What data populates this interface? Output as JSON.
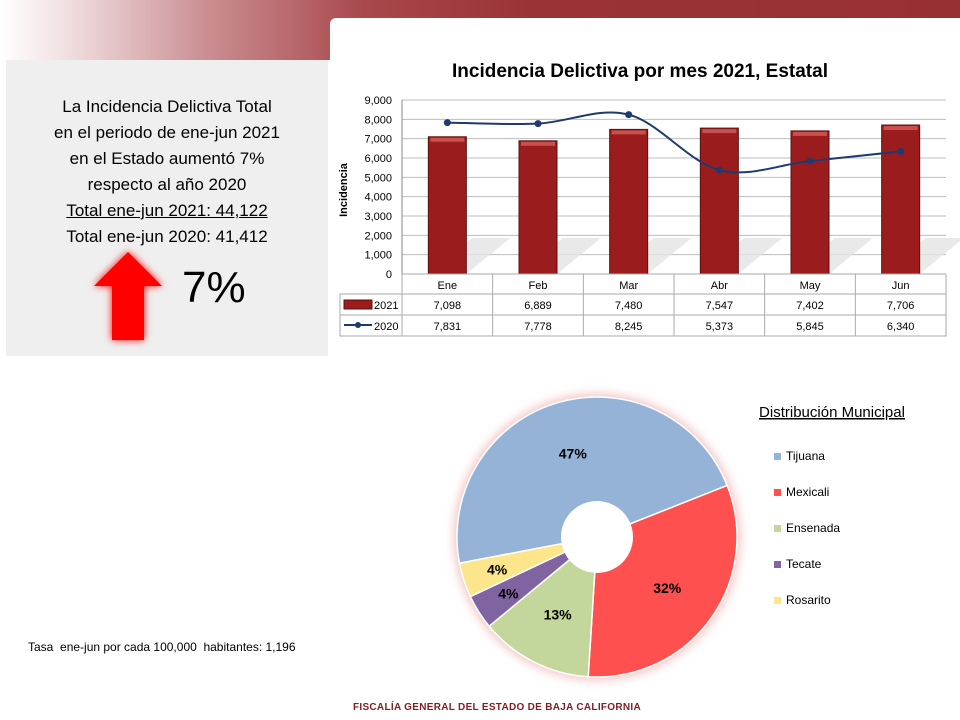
{
  "summary": {
    "lines": [
      "La Incidencia Delictiva Total",
      "en el periodo de ene-jun  2021",
      "en el Estado aumentó 7%",
      "respecto al año 2020",
      "Total ene-jun 2021:  44,122",
      "Total ene-jun 2020:  41,412"
    ],
    "percent": "7%",
    "arrow_direction": "up",
    "arrow_color": "#ff0000"
  },
  "tasa_text": "Tasa  ene-jun por cada 100,000  habitantes: 1,196",
  "footer": "FISCALÍA GENERAL DEL ESTADO DE BAJA CALIFORNIA",
  "chart_data": [
    {
      "type": "bar",
      "title": "Incidencia Delictiva por mes 2021, Estatal",
      "xlabel": "",
      "ylabel": "Incidencia",
      "categories": [
        "Ene",
        "Feb",
        "Mar",
        "Abr",
        "May",
        "Jun"
      ],
      "ylim": [
        0,
        9000
      ],
      "yticks": [
        0,
        1000,
        2000,
        3000,
        4000,
        5000,
        6000,
        7000,
        8000,
        9000
      ],
      "ytick_labels": [
        "0",
        "1,000",
        "2,000",
        "3,000",
        "4,000",
        "5,000",
        "6,000",
        "7,000",
        "8,000",
        "9,000"
      ],
      "grid": true,
      "legend": "data-table",
      "series": [
        {
          "name": "2021",
          "kind": "bar",
          "color": "#9b1c1c",
          "values": [
            7098,
            6889,
            7480,
            7547,
            7402,
            7706
          ],
          "labels": [
            "7,098",
            "6,889",
            "7,480",
            "7,547",
            "7,402",
            "7,706"
          ]
        },
        {
          "name": "2020",
          "kind": "line",
          "color": "#1f3a6e",
          "values": [
            7831,
            7778,
            8245,
            5373,
            5845,
            6340
          ],
          "labels": [
            "7,831",
            "7,778",
            "8,245",
            "5,373",
            "5,845",
            "6,340"
          ]
        }
      ]
    },
    {
      "type": "pie",
      "title": "Distribución Municipal",
      "donut": true,
      "legend": "right",
      "categories": [
        "Tijuana",
        "Mexicali",
        "Ensenada",
        "Tecate",
        "Rosarito"
      ],
      "values": [
        47,
        32,
        13,
        4,
        4
      ],
      "labels": [
        "47%",
        "32%",
        "13%",
        "4%",
        "4%"
      ],
      "colors": [
        "#95b3d7",
        "#ff5050",
        "#c3d69b",
        "#8064a2",
        "#fce58b"
      ]
    }
  ]
}
